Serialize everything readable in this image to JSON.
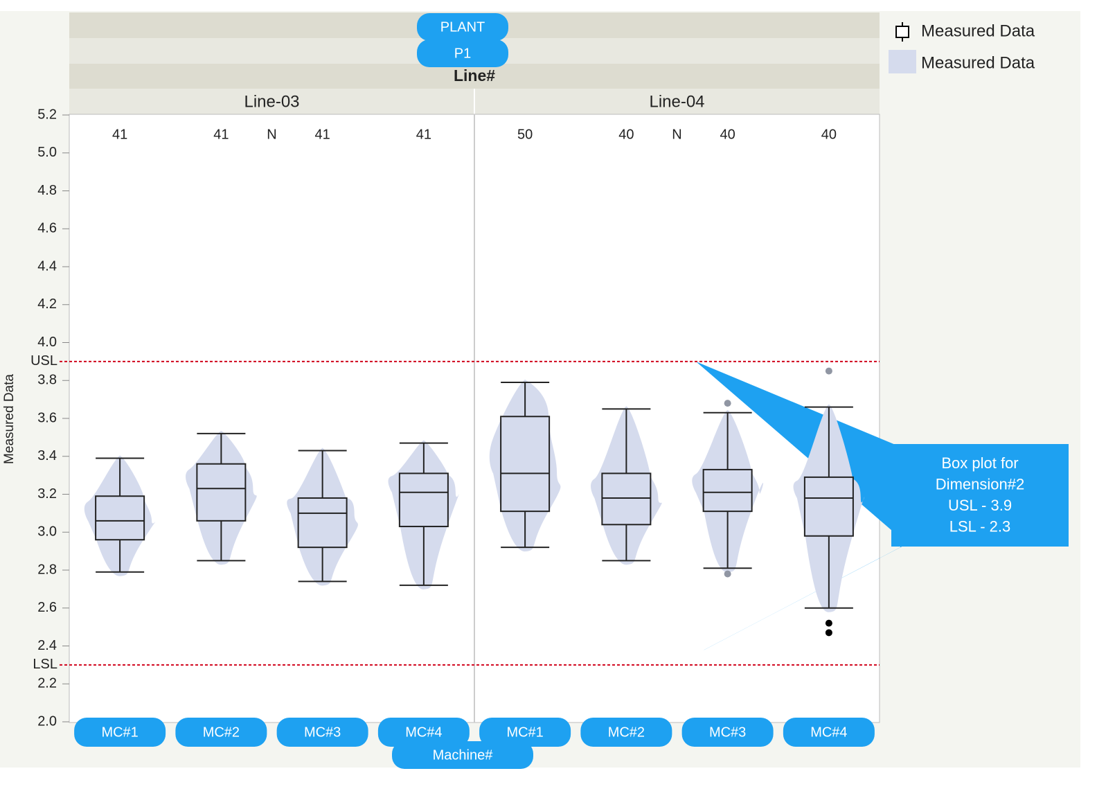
{
  "chart_data": {
    "type": "box",
    "header": [
      "PLANT",
      "P1",
      "Line#"
    ],
    "y_label": "Measured Data",
    "x_label": "Machine#",
    "n_label": "N",
    "ylim": [
      2.0,
      5.2
    ],
    "yticks": [
      {
        "value": 2.0,
        "label": "2.0"
      },
      {
        "value": 2.2,
        "label": "2.2"
      },
      {
        "value": 2.4,
        "label": "2.4"
      },
      {
        "value": 2.6,
        "label": "2.6"
      },
      {
        "value": 2.8,
        "label": "2.8"
      },
      {
        "value": 3.0,
        "label": "3.0"
      },
      {
        "value": 3.2,
        "label": "3.2"
      },
      {
        "value": 3.4,
        "label": "3.4"
      },
      {
        "value": 3.6,
        "label": "3.6"
      },
      {
        "value": 3.8,
        "label": "3.8"
      },
      {
        "value": 4.0,
        "label": "4.0"
      },
      {
        "value": 4.2,
        "label": "4.2"
      },
      {
        "value": 4.4,
        "label": "4.4"
      },
      {
        "value": 4.6,
        "label": "4.6"
      },
      {
        "value": 4.8,
        "label": "4.8"
      },
      {
        "value": 5.0,
        "label": "5.0"
      },
      {
        "value": 5.2,
        "label": "5.2"
      }
    ],
    "reference_lines": [
      {
        "label": "USL",
        "value": 3.9,
        "color": "#d0021b"
      },
      {
        "label": "LSL",
        "value": 2.3,
        "color": "#d0021b"
      }
    ],
    "violin_color": "#d5dbed",
    "legend": [
      "Measured Data",
      "Measured Data"
    ],
    "annotation": [
      "Box plot for",
      "Dimension#2",
      "USL - 3.9",
      "LSL - 2.3"
    ],
    "groups": [
      {
        "name": "Line-03",
        "categories": [
          "MC#1",
          "MC#2",
          "MC#3",
          "MC#4"
        ],
        "n": [
          41,
          41,
          41,
          41
        ],
        "boxes": [
          {
            "low": 2.79,
            "q1": 2.96,
            "median": 3.06,
            "q3": 3.19,
            "high": 3.39,
            "outliers": []
          },
          {
            "low": 2.85,
            "q1": 3.06,
            "median": 3.23,
            "q3": 3.36,
            "high": 3.52,
            "outliers": []
          },
          {
            "low": 2.74,
            "q1": 2.92,
            "median": 3.1,
            "q3": 3.18,
            "high": 3.43,
            "outliers": []
          },
          {
            "low": 2.72,
            "q1": 3.03,
            "median": 3.21,
            "q3": 3.31,
            "high": 3.47,
            "outliers": []
          }
        ]
      },
      {
        "name": "Line-04",
        "categories": [
          "MC#1",
          "MC#2",
          "MC#3",
          "MC#4"
        ],
        "n": [
          50,
          40,
          40,
          40
        ],
        "boxes": [
          {
            "low": 2.92,
            "q1": 3.11,
            "median": 3.31,
            "q3": 3.61,
            "high": 3.79,
            "outliers": []
          },
          {
            "low": 2.85,
            "q1": 3.04,
            "median": 3.18,
            "q3": 3.31,
            "high": 3.65,
            "outliers": []
          },
          {
            "low": 2.81,
            "q1": 3.11,
            "median": 3.21,
            "q3": 3.33,
            "high": 3.63,
            "outliers": [
              {
                "value": 3.68,
                "color": "#9096a3"
              },
              {
                "value": 2.78,
                "color": "#9096a3"
              }
            ]
          },
          {
            "low": 2.6,
            "q1": 2.98,
            "median": 3.18,
            "q3": 3.29,
            "high": 3.66,
            "outliers": [
              {
                "value": 3.85,
                "color": "#9096a3"
              },
              {
                "value": 2.52,
                "color": "#000000"
              },
              {
                "value": 2.47,
                "color": "#000000"
              }
            ]
          }
        ]
      }
    ]
  }
}
